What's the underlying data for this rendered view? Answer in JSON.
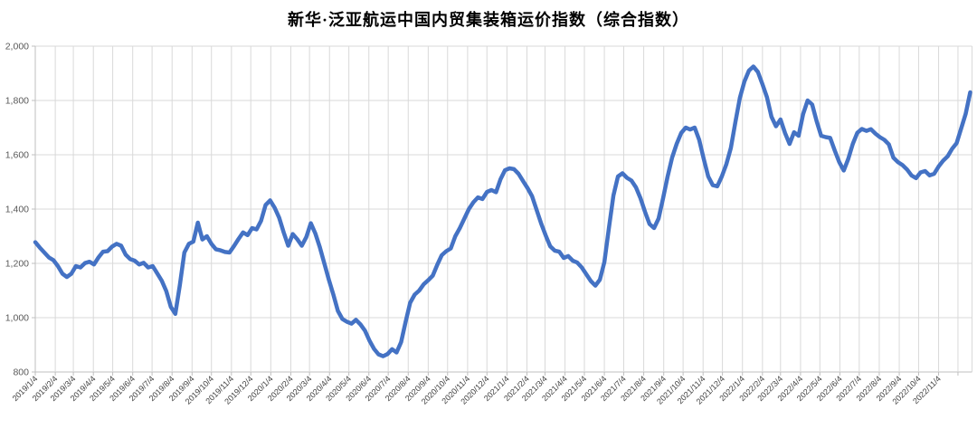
{
  "title": "新华·泛亚航运中国内贸集装箱运价指数（综合指数）",
  "chart_data": {
    "type": "line",
    "title": "新华·泛亚航运中国内贸集装箱运价指数（综合指数）",
    "legend": false,
    "grid": true,
    "line_color": "#4472C4",
    "gridline_color": "#D9D9D9",
    "axis_color": "#BFBFBF",
    "tick_label_color": "#595959",
    "ylim": [
      800,
      2000
    ],
    "y_tick_interval": 200,
    "y_tick_labels": [
      "800",
      "1,000",
      "1,200",
      "1,400",
      "1,600",
      "1,800",
      "2,000"
    ],
    "x_tick_labels": [
      "2019/1/4",
      "2019/2/4",
      "2019/3/4",
      "2019/4/4",
      "2019/5/4",
      "2019/6/4",
      "2019/7/4",
      "2019/8/4",
      "2019/9/4",
      "2019/10/4",
      "2019/11/4",
      "2019/12/4",
      "2020/1/4",
      "2020/2/4",
      "2020/3/4",
      "2020/4/4",
      "2020/5/4",
      "2020/6/4",
      "2020/7/4",
      "2020/8/4",
      "2020/9/4",
      "2020/10/4",
      "2020/11/4",
      "2020/12/4",
      "2021/1/4",
      "2021/2/4",
      "2021/3/4",
      "2021/4/4",
      "2021/5/4",
      "2021/6/4",
      "2021/7/4",
      "2021/8/4",
      "2021/9/4",
      "2021/10/4",
      "2021/11/4",
      "2021/12/4",
      "2022/1/4",
      "2022/2/4",
      "2022/3/4",
      "2022/4/4",
      "2022/5/4",
      "2022/6/4",
      "2022/7/4",
      "2022/8/4",
      "2022/9/4",
      "2022/10/4",
      "2022/11/4"
    ],
    "x": [
      "2019/1/4",
      "2019/1/11",
      "2019/1/18",
      "2019/1/25",
      "2019/2/1",
      "2019/2/8",
      "2019/2/15",
      "2019/2/22",
      "2019/3/1",
      "2019/3/8",
      "2019/3/15",
      "2019/3/22",
      "2019/3/29",
      "2019/4/5",
      "2019/4/12",
      "2019/4/19",
      "2019/4/26",
      "2019/5/3",
      "2019/5/10",
      "2019/5/17",
      "2019/5/24",
      "2019/5/31",
      "2019/6/7",
      "2019/6/14",
      "2019/6/21",
      "2019/6/28",
      "2019/7/5",
      "2019/7/12",
      "2019/7/19",
      "2019/7/26",
      "2019/8/2",
      "2019/8/9",
      "2019/8/16",
      "2019/8/23",
      "2019/8/30",
      "2019/9/6",
      "2019/9/13",
      "2019/9/20",
      "2019/9/27",
      "2019/10/4",
      "2019/10/11",
      "2019/10/18",
      "2019/10/25",
      "2019/11/1",
      "2019/11/8",
      "2019/11/15",
      "2019/11/22",
      "2019/11/29",
      "2019/12/6",
      "2019/12/13",
      "2019/12/20",
      "2019/12/27",
      "2020/1/3",
      "2020/1/10",
      "2020/1/17",
      "2020/1/24",
      "2020/1/31",
      "2020/2/7",
      "2020/2/14",
      "2020/2/21",
      "2020/2/28",
      "2020/3/6",
      "2020/3/13",
      "2020/3/20",
      "2020/3/27",
      "2020/4/3",
      "2020/4/10",
      "2020/4/17",
      "2020/4/24",
      "2020/5/1",
      "2020/5/8",
      "2020/5/15",
      "2020/5/22",
      "2020/5/29",
      "2020/6/5",
      "2020/6/12",
      "2020/6/19",
      "2020/6/26",
      "2020/7/3",
      "2020/7/10",
      "2020/7/17",
      "2020/7/24",
      "2020/7/31",
      "2020/8/7",
      "2020/8/14",
      "2020/8/21",
      "2020/8/28",
      "2020/9/4",
      "2020/9/11",
      "2020/9/18",
      "2020/9/25",
      "2020/10/2",
      "2020/10/9",
      "2020/10/16",
      "2020/10/23",
      "2020/10/30",
      "2020/11/6",
      "2020/11/13",
      "2020/11/20",
      "2020/11/27",
      "2020/12/4",
      "2020/12/11",
      "2020/12/18",
      "2020/12/25",
      "2021/1/1",
      "2021/1/8",
      "2021/1/15",
      "2021/1/22",
      "2021/1/29",
      "2021/2/5",
      "2021/2/12",
      "2021/2/19",
      "2021/2/26",
      "2021/3/5",
      "2021/3/12",
      "2021/3/19",
      "2021/3/26",
      "2021/4/2",
      "2021/4/9",
      "2021/4/16",
      "2021/4/23",
      "2021/4/30",
      "2021/5/7",
      "2021/5/14",
      "2021/5/21",
      "2021/5/28",
      "2021/6/4",
      "2021/6/11",
      "2021/6/18",
      "2021/6/25",
      "2021/7/2",
      "2021/7/9",
      "2021/7/16",
      "2021/7/23",
      "2021/7/30",
      "2021/8/6",
      "2021/8/13",
      "2021/8/20",
      "2021/8/27",
      "2021/9/3",
      "2021/9/10",
      "2021/9/17",
      "2021/9/24",
      "2021/10/1",
      "2021/10/8",
      "2021/10/15",
      "2021/10/22",
      "2021/10/29",
      "2021/11/5",
      "2021/11/12",
      "2021/11/19",
      "2021/11/26",
      "2021/12/3",
      "2021/12/10",
      "2021/12/17",
      "2021/12/24",
      "2021/12/31",
      "2022/1/7",
      "2022/1/14",
      "2022/1/21",
      "2022/1/28",
      "2022/2/4",
      "2022/2/11",
      "2022/2/18",
      "2022/2/25",
      "2022/3/4",
      "2022/3/11",
      "2022/3/18",
      "2022/3/25",
      "2022/4/1",
      "2022/4/8",
      "2022/4/15",
      "2022/4/22",
      "2022/4/29",
      "2022/5/6",
      "2022/5/13",
      "2022/5/20",
      "2022/5/27",
      "2022/6/3",
      "2022/6/10",
      "2022/6/17",
      "2022/6/24",
      "2022/7/1",
      "2022/7/8",
      "2022/7/15",
      "2022/7/22",
      "2022/7/29",
      "2022/8/5",
      "2022/8/12",
      "2022/8/19",
      "2022/8/26",
      "2022/9/2",
      "2022/9/9",
      "2022/9/16",
      "2022/9/23",
      "2022/9/30",
      "2022/10/7",
      "2022/10/14",
      "2022/10/21",
      "2022/10/28",
      "2022/11/4",
      "2022/11/11",
      "2022/11/18",
      "2022/11/25",
      "2022/12/2",
      "2022/12/9",
      "2022/12/16",
      "2022/12/23"
    ],
    "values": [
      1278,
      1258,
      1240,
      1222,
      1212,
      1190,
      1162,
      1150,
      1162,
      1190,
      1185,
      1201,
      1206,
      1196,
      1222,
      1243,
      1245,
      1262,
      1272,
      1265,
      1232,
      1216,
      1210,
      1196,
      1202,
      1185,
      1190,
      1163,
      1136,
      1098,
      1040,
      1014,
      1120,
      1240,
      1272,
      1280,
      1350,
      1288,
      1300,
      1272,
      1252,
      1248,
      1242,
      1240,
      1264,
      1290,
      1314,
      1304,
      1330,
      1325,
      1357,
      1415,
      1432,
      1405,
      1368,
      1314,
      1265,
      1308,
      1289,
      1265,
      1297,
      1348,
      1310,
      1260,
      1200,
      1140,
      1085,
      1025,
      995,
      985,
      978,
      992,
      975,
      952,
      915,
      885,
      865,
      858,
      866,
      884,
      872,
      910,
      985,
      1055,
      1085,
      1100,
      1123,
      1138,
      1155,
      1195,
      1230,
      1245,
      1255,
      1300,
      1330,
      1365,
      1400,
      1425,
      1443,
      1437,
      1463,
      1470,
      1462,
      1510,
      1543,
      1550,
      1547,
      1530,
      1503,
      1477,
      1447,
      1397,
      1347,
      1303,
      1263,
      1247,
      1243,
      1220,
      1227,
      1210,
      1203,
      1185,
      1160,
      1135,
      1118,
      1140,
      1205,
      1330,
      1450,
      1520,
      1532,
      1515,
      1505,
      1480,
      1440,
      1390,
      1345,
      1330,
      1365,
      1440,
      1520,
      1590,
      1640,
      1680,
      1700,
      1693,
      1700,
      1655,
      1585,
      1520,
      1488,
      1484,
      1520,
      1565,
      1625,
      1720,
      1810,
      1870,
      1910,
      1925,
      1905,
      1860,
      1812,
      1740,
      1705,
      1730,
      1680,
      1640,
      1683,
      1670,
      1750,
      1800,
      1785,
      1724,
      1670,
      1665,
      1662,
      1616,
      1573,
      1542,
      1585,
      1640,
      1681,
      1695,
      1688,
      1694,
      1678,
      1665,
      1655,
      1638,
      1589,
      1573,
      1562,
      1546,
      1524,
      1514,
      1535,
      1540,
      1524,
      1530,
      1557,
      1578,
      1594,
      1622,
      1643,
      1697,
      1751,
      1830
    ]
  }
}
